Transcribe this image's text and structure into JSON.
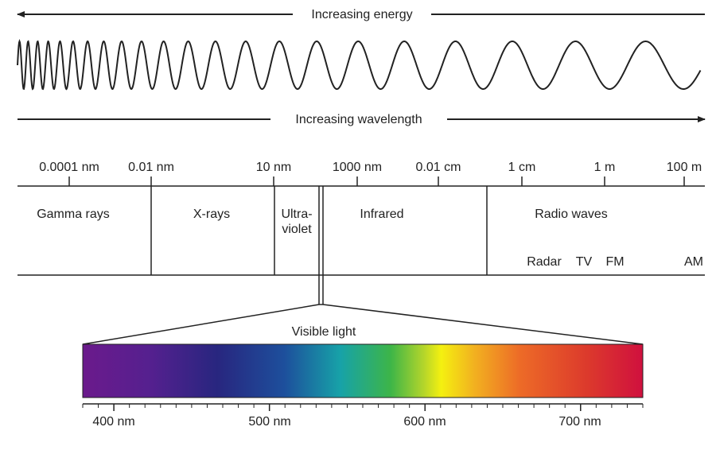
{
  "arrows": {
    "energy": "Increasing energy",
    "wavelength": "Increasing wavelength"
  },
  "scale": {
    "ticks": [
      "0.0001 nm",
      "0.01 nm",
      "10 nm",
      "1000 nm",
      "0.01 cm",
      "1 cm",
      "1 m",
      "100 m"
    ]
  },
  "bands": {
    "gamma": "Gamma rays",
    "xrays": "X-rays",
    "uv_line1": "Ultra-",
    "uv_line2": "violet",
    "infrared": "Infrared",
    "radio": "Radio waves"
  },
  "radio_sub": {
    "radar": "Radar",
    "tv": "TV",
    "fm": "FM",
    "am": "AM"
  },
  "visible": {
    "title": "Visible light",
    "ticks": [
      "400 nm",
      "500 nm",
      "600 nm",
      "700 nm"
    ],
    "range_nm": [
      380,
      740
    ]
  },
  "colors": {
    "ink": "#222222",
    "violet": "#6a1f8f",
    "blue": "#2a3a9a",
    "cyan": "#1aa6b3",
    "green": "#3cb64a",
    "yellow": "#f2ef12",
    "orange": "#f19a2e",
    "red": "#d4143c"
  }
}
